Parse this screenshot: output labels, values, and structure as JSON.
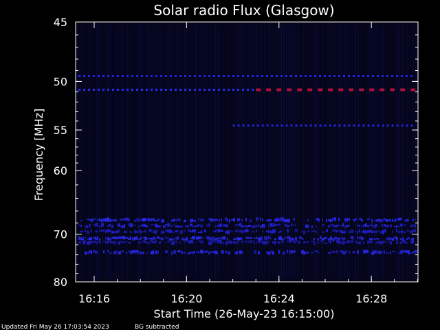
{
  "chart_data": {
    "type": "heatmap",
    "title": "Solar radio Flux (Glasgow)",
    "xlabel": "Start Time (26-May-23 16:15:00)",
    "ylabel": "Frequency [MHz]",
    "x_ticks": [
      "16:16",
      "16:20",
      "16:24",
      "16:28"
    ],
    "y_ticks": [
      "45",
      "50",
      "55",
      "60",
      "70",
      "80"
    ],
    "background_color": "#000000",
    "plot_color": "#050518",
    "bands": [
      {
        "freq": 49.5,
        "start": "16:15",
        "end": "16:30",
        "intensity": "medium",
        "color": "#2222dd",
        "style": "dashed"
      },
      {
        "freq": 50.8,
        "start": "16:15",
        "end": "16:23",
        "intensity": "medium",
        "color": "#2b2bf0",
        "style": "dashed"
      },
      {
        "freq": 50.8,
        "start": "16:23",
        "end": "16:30",
        "intensity": "high",
        "color": "#b0103a",
        "style": "dashed"
      },
      {
        "freq": 54.5,
        "start": "16:22",
        "end": "16:30",
        "intensity": "medium",
        "color": "#2424d8",
        "style": "dashed"
      },
      {
        "freq": 67.5,
        "start": "16:15",
        "end": "16:30",
        "intensity": "medium",
        "color": "#2a2af0",
        "style": "blobs"
      },
      {
        "freq": 68.5,
        "start": "16:15",
        "end": "16:30",
        "intensity": "medium",
        "color": "#2323d6",
        "style": "blobs"
      },
      {
        "freq": 69.5,
        "start": "16:15",
        "end": "16:30",
        "intensity": "medium",
        "color": "#2020cc",
        "style": "blobs"
      },
      {
        "freq": 70.8,
        "start": "16:15",
        "end": "16:30",
        "intensity": "medium",
        "color": "#2a2aee",
        "style": "blobs"
      },
      {
        "freq": 71.5,
        "start": "16:15",
        "end": "16:30",
        "intensity": "low",
        "color": "#1c1cb8",
        "style": "blobs"
      },
      {
        "freq": 73.5,
        "start": "16:15",
        "end": "16:30",
        "intensity": "medium",
        "color": "#2525e0",
        "style": "blobs"
      }
    ]
  },
  "footer": {
    "updated": "Updated Fri May 26 17:03:54 2023",
    "bg_note": "BG subtracted"
  }
}
